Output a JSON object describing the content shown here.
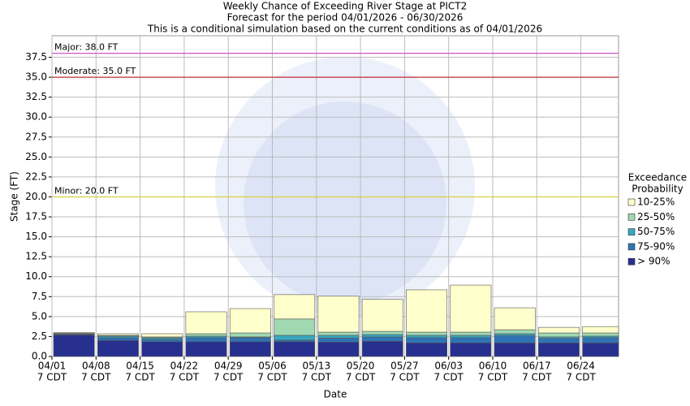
{
  "chart_data": {
    "type": "stacked_bar",
    "title": [
      "Weekly Chance of Exceeding River Stage at PICT2",
      "Forecast for the period 04/01/2026 - 06/30/2026",
      "This is a conditional simulation based on the current conditions as of 04/01/2026"
    ],
    "x_label": "Date",
    "y_label": "Stage (FT)",
    "categories": [
      "04/01",
      "04/08",
      "04/15",
      "04/22",
      "04/29",
      "05/06",
      "05/13",
      "05/20",
      "05/27",
      "06/03",
      "06/10",
      "06/17",
      "06/24"
    ],
    "category_sublabel": "7 CDT",
    "ylim": [
      0,
      40.2
    ],
    "yticks": [
      {
        "value": 0,
        "label": "0.0"
      },
      2.5,
      {
        "value": 5,
        "label": "5.0"
      },
      7.5,
      {
        "value": 10,
        "label": "10.0"
      },
      12.5,
      {
        "value": 15,
        "label": "15.0"
      },
      17.5,
      {
        "value": 20,
        "label": "20.0"
      },
      22.5,
      {
        "value": 25,
        "label": "25.0"
      },
      27.5,
      {
        "value": 30,
        "label": "30.0"
      },
      32.5,
      {
        "value": 35,
        "label": "35.0"
      },
      37.5
    ],
    "grid": true,
    "legend_title": [
      "Exceedance",
      "Probability"
    ],
    "legend_position": "right",
    "series": [
      {
        "name": "> 90%",
        "color": "#27308f",
        "values": [
          2.7,
          2.0,
          1.85,
          1.85,
          1.85,
          1.85,
          1.8,
          1.9,
          1.7,
          1.7,
          1.7,
          1.7,
          1.7
        ]
      },
      {
        "name": "75-90%",
        "color": "#2f74b5",
        "values": [
          0.1,
          0.35,
          0.3,
          0.5,
          0.5,
          0.2,
          0.5,
          0.55,
          0.65,
          0.65,
          0.9,
          0.55,
          0.65
        ]
      },
      {
        "name": "50-75%",
        "color": "#3aa7be",
        "values": [
          0.05,
          0.2,
          0.2,
          0.2,
          0.1,
          0.6,
          0.35,
          0.3,
          0.3,
          0.3,
          0.25,
          0.2,
          0.2
        ]
      },
      {
        "name": "25-50%",
        "color": "#a0d8b2",
        "values": [
          0.05,
          0.1,
          0.1,
          0.3,
          0.5,
          2.05,
          0.4,
          0.4,
          0.4,
          0.4,
          0.5,
          0.5,
          0.4
        ]
      },
      {
        "name": "10-25%",
        "color": "#ffffcc",
        "values": [
          0.1,
          0.2,
          0.4,
          2.75,
          3.05,
          3.05,
          4.5,
          4.0,
          5.3,
          5.9,
          2.75,
          0.7,
          0.8
        ]
      }
    ],
    "thresholds": [
      {
        "label": "Major: 38.0 FT",
        "value": 38.0,
        "color": "#cc55cc"
      },
      {
        "label": "Moderate: 35.0 FT",
        "value": 35.0,
        "color": "#c0303a"
      },
      {
        "label": "Minor: 20.0 FT",
        "value": 20.0,
        "color": "#d8d040"
      }
    ]
  }
}
